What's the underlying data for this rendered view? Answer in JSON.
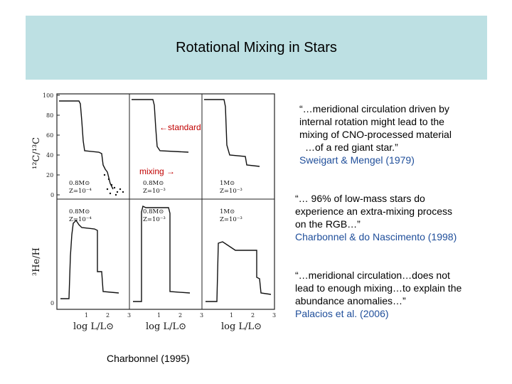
{
  "slide": {
    "title": "Rotational Mixing in Stars",
    "credit": "Charbonnel (1995)",
    "annotations": {
      "standard": "←standard",
      "mixing": "mixing →"
    },
    "quotes": [
      {
        "lines": [
          "“…meridional circulation driven by",
          "internal rotation might lead to the",
          "mixing of CNO-processed material",
          "…of a red giant star.”"
        ],
        "citation": "Sweigart & Mengel (1979)"
      },
      {
        "lines": [
          "“… 96% of low-mass stars do",
          "experience an extra-mixing process",
          "on the RGB…”"
        ],
        "citation": "Charbonnel & do Nascimento (1998)"
      },
      {
        "lines": [
          "“…meridional circulation…does not",
          "lead to enough mixing…to explain the",
          "abundance anomalies…”"
        ],
        "citation": "Palacios et al. (2006)"
      }
    ]
  },
  "figure": {
    "y_labels": {
      "top": "¹²C/¹³C",
      "bottom": "³He/H"
    },
    "x_label": "log L/L⊙",
    "y_ticks_top": [
      "100",
      "80",
      "60",
      "40",
      "20",
      "0"
    ],
    "y_ticks_bottom": [
      "0"
    ],
    "x_ticks": [
      "1",
      "2",
      "3"
    ],
    "panel_labels": [
      {
        "mass": "0.8M⊙",
        "z": "Z=10⁻⁴"
      },
      {
        "mass": "0.8M⊙",
        "z": "Z=10⁻³"
      },
      {
        "mass": "1M⊙",
        "z": "Z=10⁻³"
      },
      {
        "mass": "0.8M⊙",
        "z": "Z=10⁻⁴"
      },
      {
        "mass": "0.8M⊙",
        "z": "Z=10⁻³"
      },
      {
        "mass": "1M⊙",
        "z": "Z=10⁻³"
      }
    ]
  },
  "colors": {
    "title_band": "#bde0e3",
    "annotation": "#c00000",
    "citation": "#1f4e9a"
  }
}
